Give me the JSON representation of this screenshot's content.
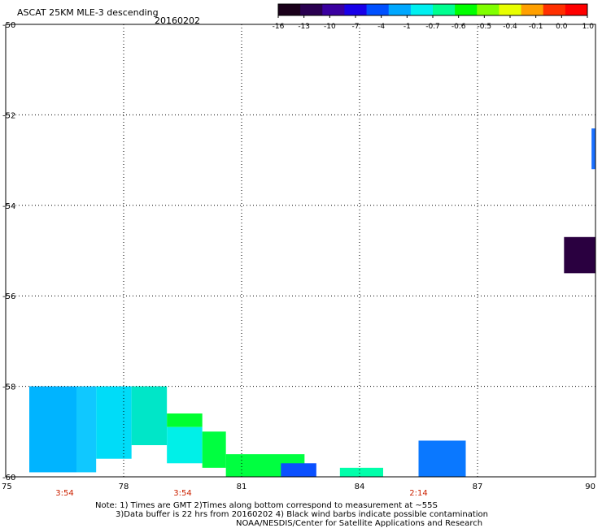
{
  "chart_data": {
    "type": "heatmap",
    "title": "ASCAT 25KM MLE-3 descending",
    "date": "20160202",
    "xlim": [
      75,
      90
    ],
    "ylim": [
      -60,
      -50
    ],
    "x_ticks": [
      "75",
      "78",
      "81",
      "84",
      "87",
      "90"
    ],
    "y_ticks": [
      "-50",
      "-52",
      "-54",
      "-56",
      "-58",
      "-60"
    ],
    "time_labels": [
      {
        "x": 76.5,
        "label": "3:54"
      },
      {
        "x": 79.5,
        "label": "3:54"
      },
      {
        "x": 85.5,
        "label": "2:14"
      }
    ],
    "grid": true,
    "colorbar": {
      "tick_labels": [
        "-16",
        "-13",
        "-10",
        "-7",
        "-4",
        "-1",
        "-0.7",
        "-0.6",
        "-0.5",
        "-0.4",
        "-0.1",
        "0.0",
        "1.0"
      ],
      "colors": [
        "#1a001a",
        "#2a0050",
        "#3a00a0",
        "#1800e8",
        "#0050ff",
        "#00a8ff",
        "#00f0f0",
        "#00ff90",
        "#00ff00",
        "#80ff00",
        "#e8ff00",
        "#ffa000",
        "#ff3000",
        "#ff0000"
      ]
    },
    "cells": [
      {
        "lon": [
          75.6,
          76.8
        ],
        "lat": [
          -59.9,
          -58.0
        ],
        "color": "#00b4ff"
      },
      {
        "lon": [
          76.8,
          77.3
        ],
        "lat": [
          -59.9,
          -58.0
        ],
        "color": "#10c8ff"
      },
      {
        "lon": [
          77.3,
          78.2
        ],
        "lat": [
          -59.6,
          -58.0
        ],
        "color": "#00dcf8"
      },
      {
        "lon": [
          78.2,
          79.1
        ],
        "lat": [
          -59.3,
          -58.0
        ],
        "color": "#00e6c8"
      },
      {
        "lon": [
          79.1,
          80.0
        ],
        "lat": [
          -58.9,
          -58.6
        ],
        "color": "#00ff30"
      },
      {
        "lon": [
          79.1,
          80.0
        ],
        "lat": [
          -59.7,
          -58.9
        ],
        "color": "#00f0e8"
      },
      {
        "lon": [
          80.0,
          80.6
        ],
        "lat": [
          -59.8,
          -59.0
        ],
        "color": "#00ff40"
      },
      {
        "lon": [
          80.6,
          82.6
        ],
        "lat": [
          -60.0,
          -59.5
        ],
        "color": "#00ff40"
      },
      {
        "lon": [
          82.0,
          82.9
        ],
        "lat": [
          -60.0,
          -59.7
        ],
        "color": "#0a50ff"
      },
      {
        "lon": [
          83.5,
          84.6
        ],
        "lat": [
          -60.0,
          -59.8
        ],
        "color": "#00ffaa"
      },
      {
        "lon": [
          85.5,
          86.7
        ],
        "lat": [
          -60.0,
          -59.2
        ],
        "color": "#0a78ff"
      },
      {
        "lon": [
          89.2,
          90.0
        ],
        "lat": [
          -55.5,
          -54.7
        ],
        "color": "#2a0040"
      },
      {
        "lon": [
          89.9,
          90.0
        ],
        "lat": [
          -53.2,
          -52.3
        ],
        "color": "#1a70ff"
      }
    ],
    "notes": [
      "Note: 1) Times are GMT 2)Times along bottom correspond to measurement at ~55S",
      "3)Data buffer is 22 hrs from 20160202 4) Black wind barbs indicate possible contamination",
      "NOAA/NESDIS/Center for Satellite Applications and Research"
    ]
  }
}
